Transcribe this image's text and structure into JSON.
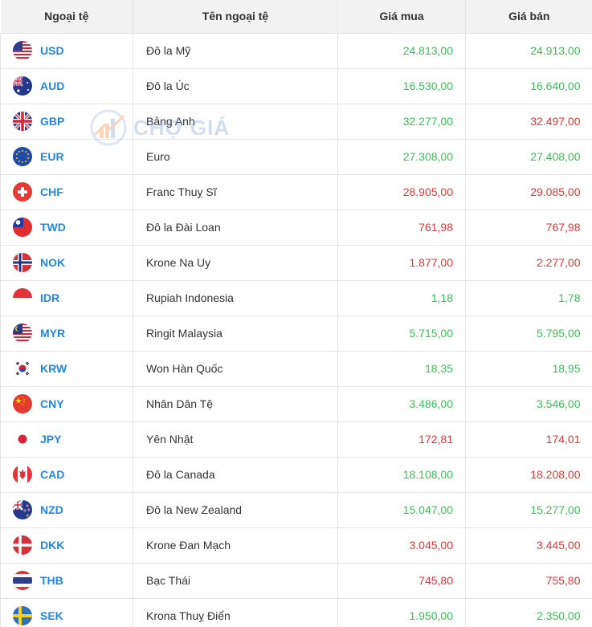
{
  "header": {
    "code": "Ngoại tệ",
    "name": "Tên ngoại tệ",
    "buy": "Giá mua",
    "sell": "Giá bán"
  },
  "watermark": {
    "text": "CHỢ GIÁ"
  },
  "colors": {
    "up": "#3cbf5b",
    "down": "#e8343a",
    "code": "#1e87e8"
  },
  "rows": [
    {
      "code": "USD",
      "name": "Đô la Mỹ",
      "buy": "24.813,00",
      "sell": "24.913,00",
      "buy_dir": "up",
      "sell_dir": "up",
      "flag": "us-flag-icon"
    },
    {
      "code": "AUD",
      "name": "Đô la Úc",
      "buy": "16.530,00",
      "sell": "16.640,00",
      "buy_dir": "up",
      "sell_dir": "up",
      "flag": "au-flag-icon"
    },
    {
      "code": "GBP",
      "name": "Bảng Anh",
      "buy": "32.277,00",
      "sell": "32.497,00",
      "buy_dir": "up",
      "sell_dir": "down",
      "flag": "gb-flag-icon"
    },
    {
      "code": "EUR",
      "name": "Euro",
      "buy": "27.308,00",
      "sell": "27.408,00",
      "buy_dir": "up",
      "sell_dir": "up",
      "flag": "eu-flag-icon"
    },
    {
      "code": "CHF",
      "name": "Franc Thuỵ Sĩ",
      "buy": "28.905,00",
      "sell": "29.085,00",
      "buy_dir": "down",
      "sell_dir": "down",
      "flag": "ch-flag-icon"
    },
    {
      "code": "TWD",
      "name": "Đô la Đài Loan",
      "buy": "761,98",
      "sell": "767,98",
      "buy_dir": "down",
      "sell_dir": "down",
      "flag": "tw-flag-icon"
    },
    {
      "code": "NOK",
      "name": "Krone Na Uy",
      "buy": "1.877,00",
      "sell": "2.277,00",
      "buy_dir": "down",
      "sell_dir": "down",
      "flag": "no-flag-icon"
    },
    {
      "code": "IDR",
      "name": "Rupiah Indonesia",
      "buy": "1,18",
      "sell": "1,78",
      "buy_dir": "up",
      "sell_dir": "up",
      "flag": "id-flag-icon"
    },
    {
      "code": "MYR",
      "name": "Ringit Malaysia",
      "buy": "5.715,00",
      "sell": "5.795,00",
      "buy_dir": "up",
      "sell_dir": "up",
      "flag": "my-flag-icon"
    },
    {
      "code": "KRW",
      "name": "Won Hàn Quốc",
      "buy": "18,35",
      "sell": "18,95",
      "buy_dir": "up",
      "sell_dir": "up",
      "flag": "kr-flag-icon"
    },
    {
      "code": "CNY",
      "name": "Nhân Dân Tệ",
      "buy": "3.486,00",
      "sell": "3.546,00",
      "buy_dir": "up",
      "sell_dir": "up",
      "flag": "cn-flag-icon"
    },
    {
      "code": "JPY",
      "name": "Yên Nhật",
      "buy": "172,81",
      "sell": "174,01",
      "buy_dir": "down",
      "sell_dir": "down",
      "flag": "jp-flag-icon"
    },
    {
      "code": "CAD",
      "name": "Đô la Canada",
      "buy": "18.108,00",
      "sell": "18.208,00",
      "buy_dir": "up",
      "sell_dir": "down",
      "flag": "ca-flag-icon"
    },
    {
      "code": "NZD",
      "name": "Đô la New Zealand",
      "buy": "15.047,00",
      "sell": "15.277,00",
      "buy_dir": "up",
      "sell_dir": "up",
      "flag": "nz-flag-icon"
    },
    {
      "code": "DKK",
      "name": "Krone Đan Mạch",
      "buy": "3.045,00",
      "sell": "3.445,00",
      "buy_dir": "down",
      "sell_dir": "down",
      "flag": "dk-flag-icon"
    },
    {
      "code": "THB",
      "name": "Bạc Thái",
      "buy": "745,80",
      "sell": "755,80",
      "buy_dir": "down",
      "sell_dir": "down",
      "flag": "th-flag-icon"
    },
    {
      "code": "SEK",
      "name": "Krona Thuỵ Điển",
      "buy": "1.950,00",
      "sell": "2.350,00",
      "buy_dir": "up",
      "sell_dir": "up",
      "flag": "se-flag-icon"
    }
  ]
}
